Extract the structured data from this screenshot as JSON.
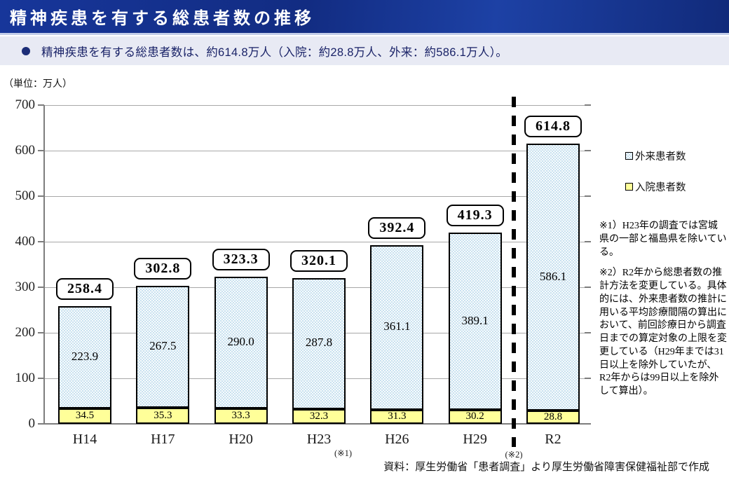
{
  "header": {
    "title": "精神疾患を有する総患者数の推移"
  },
  "summary": {
    "text": "精神疾患を有する総患者数は、約614.8万人（入院：約28.8万人、外来：約586.1万人）。"
  },
  "chart_data": {
    "type": "bar",
    "stacked": true,
    "unit_label": "（単位：万人）",
    "categories": [
      "H14",
      "H17",
      "H20",
      "H23",
      "H26",
      "H29",
      "R2"
    ],
    "series": [
      {
        "name": "入院患者数",
        "color": "#ffff99",
        "values": [
          34.5,
          35.3,
          33.3,
          32.3,
          31.3,
          30.2,
          28.8
        ]
      },
      {
        "name": "外来患者数",
        "color": "#c5dfef",
        "values": [
          223.9,
          267.5,
          290.0,
          287.8,
          361.1,
          389.1,
          586.1
        ]
      }
    ],
    "totals": [
      258.4,
      302.8,
      323.3,
      320.1,
      392.4,
      419.3,
      614.8
    ],
    "ylim": [
      0,
      700
    ],
    "ytick_step": 100,
    "grid": true,
    "legend_position": "right",
    "category_footnotes": [
      "",
      "",
      "",
      "(※1)",
      "",
      "",
      ""
    ],
    "divider": {
      "after_category": "H29",
      "label": "(※2)"
    }
  },
  "legend": {
    "items": [
      {
        "label": "外来患者数",
        "color": "#c5dfef"
      },
      {
        "label": "入院患者数",
        "color": "#ffff99"
      }
    ]
  },
  "notes": {
    "note1": "※1）H23年の調査では宮城県の一部と福島県を除いている。",
    "note2": "※2）R2年から総患者数の推計方法を変更している。具体的には、外来患者数の推計に用いる平均診療間隔の算出において、前回診療日から調査日までの算定対象の上限を変更している（H29年までは31日以上を除外していたが、R2年からは99日以上を除外して算出）。"
  },
  "source": "資料：厚生労働省「患者調査」より厚生労働省障害保健福祉部で作成"
}
